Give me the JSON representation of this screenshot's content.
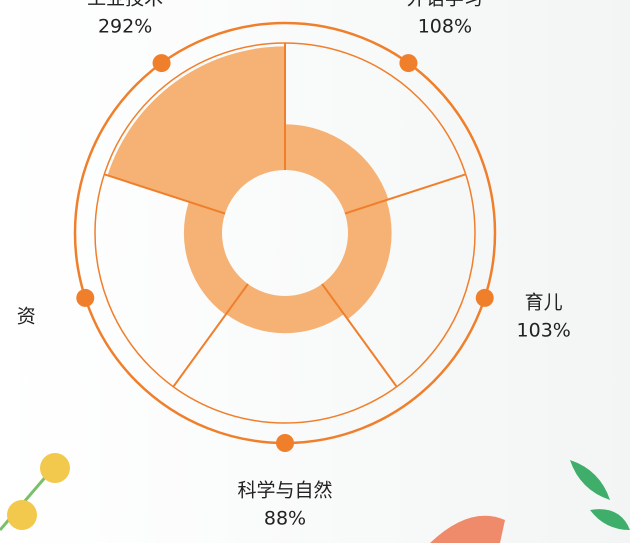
{
  "chart_data": {
    "type": "polar",
    "categories": [
      "外语学习",
      "育儿",
      "科学与自然",
      "资",
      "工业技术"
    ],
    "values": [
      108,
      103,
      88,
      90,
      292
    ],
    "value_labels": [
      "108%",
      "103%",
      "88%",
      null,
      "292%"
    ],
    "rlim": [
      0,
      300
    ],
    "color": "#f5b274",
    "line_color": "#f07f2c"
  }
}
